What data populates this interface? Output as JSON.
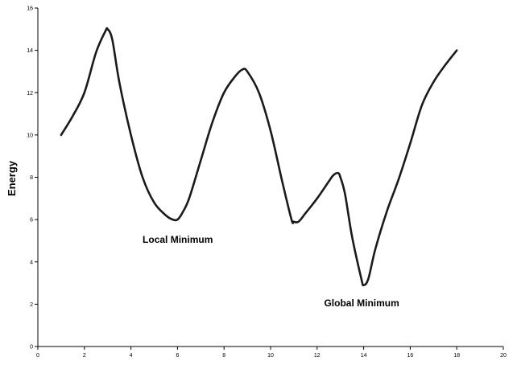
{
  "chart_data": {
    "type": "line",
    "title": "",
    "xlabel": "",
    "ylabel": "Energy",
    "xlim": [
      0,
      20
    ],
    "ylim": [
      0,
      16
    ],
    "xticks": [
      0,
      2,
      4,
      6,
      8,
      10,
      12,
      14,
      16,
      18,
      20
    ],
    "yticks": [
      0,
      2,
      4,
      6,
      8,
      10,
      12,
      14,
      16
    ],
    "grid": false,
    "legend": "none",
    "line_color": "#1a1a1a",
    "series": [
      {
        "x": [
          1.0,
          1.5,
          2.0,
          2.5,
          2.9,
          3.0,
          3.2,
          3.5,
          4.0,
          4.5,
          5.0,
          5.5,
          5.8,
          6.0,
          6.2,
          6.5,
          7.0,
          7.5,
          8.0,
          8.5,
          8.8,
          9.0,
          9.5,
          10.0,
          10.5,
          10.9,
          11.0,
          11.2,
          11.5,
          12.0,
          12.5,
          12.7,
          12.9,
          13.0,
          13.2,
          13.5,
          13.9,
          14.0,
          14.2,
          14.5,
          15.0,
          15.5,
          16.0,
          16.5,
          17.0,
          17.5,
          18.0
        ],
        "y": [
          10.0,
          10.9,
          12.0,
          13.9,
          14.9,
          15.0,
          14.5,
          12.5,
          10.0,
          8.0,
          6.8,
          6.2,
          6.0,
          6.0,
          6.3,
          7.0,
          8.8,
          10.6,
          12.0,
          12.8,
          13.1,
          13.0,
          12.0,
          10.2,
          7.8,
          6.0,
          5.9,
          5.9,
          6.3,
          7.0,
          7.8,
          8.1,
          8.2,
          8.0,
          7.2,
          5.2,
          3.2,
          2.9,
          3.2,
          4.6,
          6.4,
          7.9,
          9.6,
          11.4,
          12.5,
          13.3,
          14.0
        ]
      }
    ],
    "annotations": [
      {
        "text": "Local Minimum",
        "x": 4.5,
        "y": 4.9
      },
      {
        "text": "Global Minimum",
        "x": 12.3,
        "y": 1.9
      }
    ]
  }
}
